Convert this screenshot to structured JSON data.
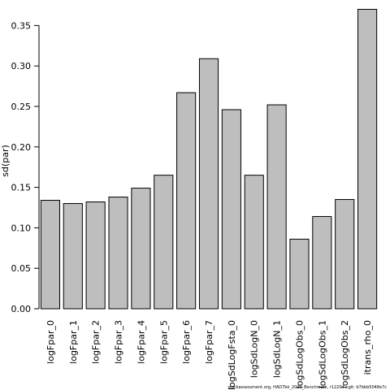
{
  "chart_data": {
    "type": "bar",
    "ylabel": "sd(par)",
    "xlabel": "",
    "ylim": [
      0,
      0.37
    ],
    "yticks": [
      "0.00",
      "0.05",
      "0.10",
      "0.15",
      "0.20",
      "0.25",
      "0.30",
      "0.35"
    ],
    "categories": [
      "logFpar_0",
      "logFpar_1",
      "logFpar_2",
      "logFpar_3",
      "logFpar_4",
      "logFpar_5",
      "logFpar_6",
      "logFpar_7",
      "logSdLogFsta_0",
      "logSdLogN_0",
      "logSdLogN_1",
      "logSdLogObs_0",
      "logSdLogObs_1",
      "logSdLogObs_2",
      "itrans_rho_0"
    ],
    "values": [
      0.134,
      0.13,
      0.132,
      0.138,
      0.149,
      0.165,
      0.267,
      0.309,
      0.246,
      0.165,
      0.252,
      0.086,
      0.114,
      0.135,
      0.37
    ],
    "bar_color": "#bebebe",
    "border_color": "#000000",
    "grid": false
  },
  "footnote": "stockassessment.org, HAD7bk_2020_Benchmark, r12204 ; git: b7bbb5048e7c"
}
